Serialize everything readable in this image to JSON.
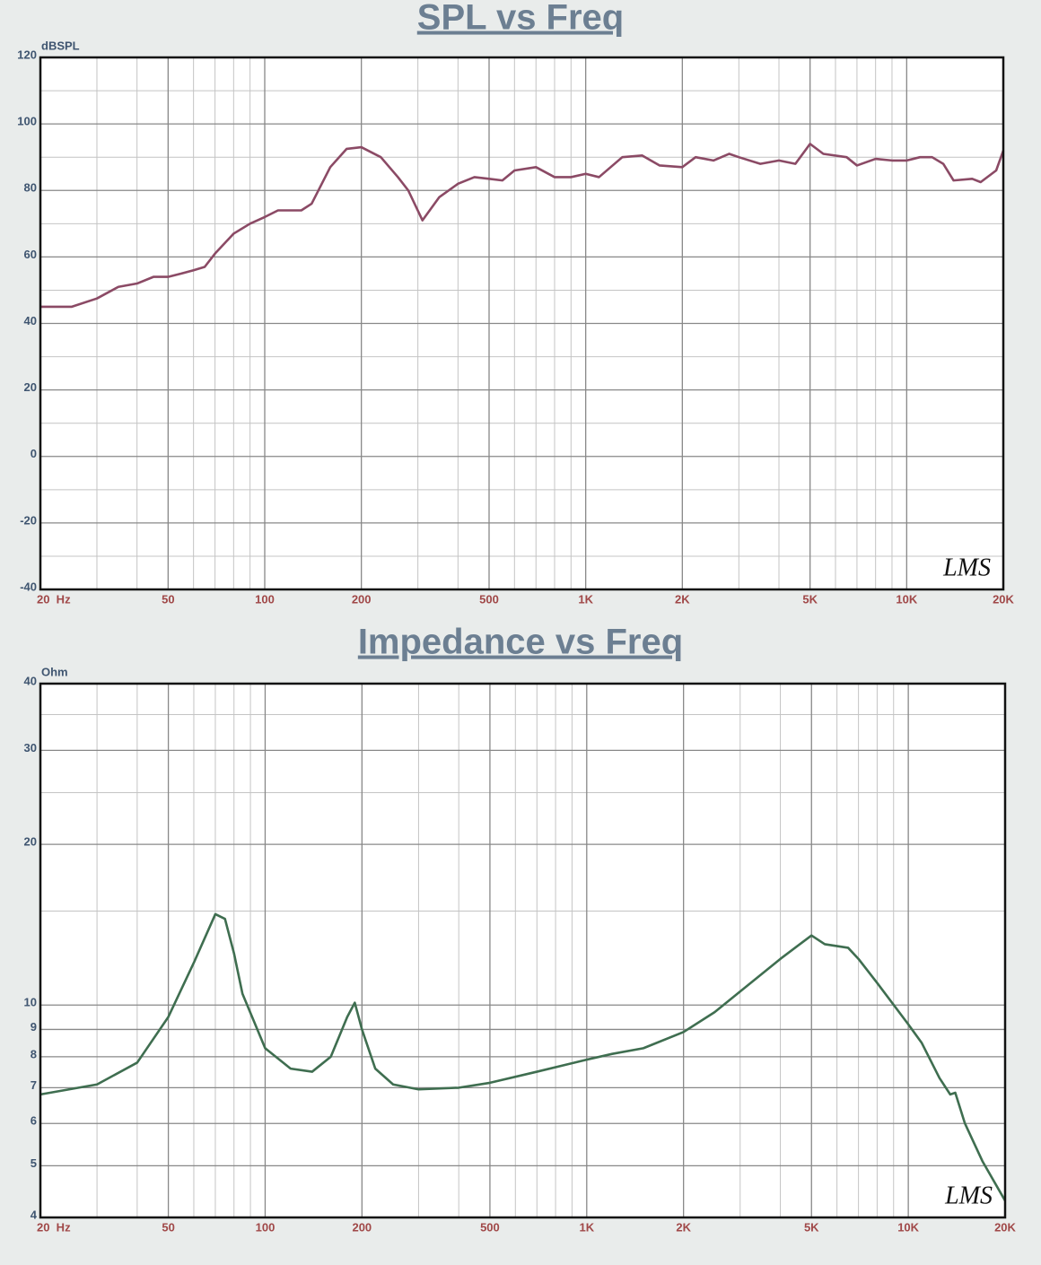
{
  "chart_data": [
    {
      "type": "line",
      "title": "SPL vs Freq",
      "y_label": "dBSPL",
      "watermark": "LMS",
      "xscale": "log",
      "yscale": "linear",
      "grid": true,
      "color": "#8b4a65",
      "xlim": [
        20,
        20000
      ],
      "ylim": [
        -40,
        120
      ],
      "xticks": [
        {
          "value": 20,
          "label": "20  Hz"
        },
        50,
        100,
        200,
        500,
        {
          "value": 1000,
          "label": "1K"
        },
        {
          "value": 2000,
          "label": "2K"
        },
        {
          "value": 5000,
          "label": "5K"
        },
        {
          "value": 10000,
          "label": "10K"
        },
        {
          "value": 20000,
          "label": "20K"
        }
      ],
      "x_minor_ticks": [
        30,
        40,
        60,
        70,
        80,
        90,
        300,
        400,
        600,
        700,
        800,
        900,
        3000,
        4000,
        6000,
        7000,
        8000,
        9000
      ],
      "yticks": [
        -40,
        -20,
        0,
        20,
        40,
        60,
        80,
        100,
        120
      ],
      "y_minor_ticks": [
        -30,
        -10,
        10,
        30,
        50,
        70,
        90,
        110
      ],
      "x": [
        20,
        25,
        30,
        35,
        40,
        45,
        50,
        55,
        60,
        65,
        70,
        80,
        90,
        100,
        110,
        130,
        140,
        160,
        180,
        200,
        230,
        260,
        280,
        310,
        350,
        400,
        450,
        500,
        550,
        600,
        700,
        800,
        900,
        1000,
        1100,
        1300,
        1500,
        1700,
        2000,
        2200,
        2500,
        2800,
        3000,
        3500,
        4000,
        4500,
        5000,
        5500,
        6500,
        7000,
        8000,
        9000,
        10000,
        11000,
        12000,
        13000,
        14000,
        16000,
        17000,
        19000,
        20000
      ],
      "values": [
        45,
        45,
        47.5,
        51,
        52,
        54,
        54,
        55,
        56,
        57,
        61,
        67,
        70,
        72,
        74,
        74,
        76,
        87,
        92.5,
        93,
        90,
        84,
        80,
        71,
        78,
        82,
        84,
        83.5,
        83,
        86,
        87,
        84,
        84,
        85,
        84,
        90,
        90.5,
        87.5,
        87,
        90,
        89,
        91,
        90,
        88,
        89,
        88,
        94,
        91,
        90,
        87.5,
        89.5,
        89,
        89,
        90,
        90,
        88,
        83,
        83.5,
        82.5,
        86,
        92
      ]
    },
    {
      "type": "line",
      "title": "Impedance vs Freq",
      "y_label": "Ohm",
      "watermark": "LMS",
      "xscale": "log",
      "yscale": "log",
      "grid": true,
      "color": "#3f6e50",
      "xlim": [
        20,
        20000
      ],
      "ylim": [
        4,
        40
      ],
      "xticks": [
        {
          "value": 20,
          "label": "20  Hz"
        },
        50,
        100,
        200,
        500,
        {
          "value": 1000,
          "label": "1K"
        },
        {
          "value": 2000,
          "label": "2K"
        },
        {
          "value": 5000,
          "label": "5K"
        },
        {
          "value": 10000,
          "label": "10K"
        },
        {
          "value": 20000,
          "label": "20K"
        }
      ],
      "x_minor_ticks": [
        30,
        40,
        60,
        70,
        80,
        90,
        300,
        400,
        600,
        700,
        800,
        900,
        3000,
        4000,
        6000,
        7000,
        8000,
        9000
      ],
      "yticks": [
        4,
        5,
        6,
        7,
        8,
        9,
        10,
        20,
        30,
        40
      ],
      "y_minor_ticks": [
        15,
        25,
        35
      ],
      "x": [
        20,
        30,
        40,
        50,
        60,
        70,
        75,
        80,
        85,
        100,
        120,
        140,
        160,
        180,
        190,
        200,
        220,
        250,
        300,
        400,
        500,
        700,
        1000,
        1200,
        1500,
        2000,
        2500,
        3000,
        4000,
        5000,
        5500,
        6500,
        7000,
        8000,
        10000,
        11000,
        12500,
        13500,
        14000,
        15000,
        17000,
        20000
      ],
      "values": [
        6.8,
        7.1,
        7.8,
        9.5,
        12,
        14.8,
        14.5,
        12.5,
        10.5,
        8.3,
        7.6,
        7.5,
        8,
        9.5,
        10.1,
        9,
        7.6,
        7.1,
        6.95,
        7,
        7.15,
        7.5,
        7.9,
        8.1,
        8.3,
        8.9,
        9.7,
        10.6,
        12.2,
        13.5,
        13,
        12.8,
        12.2,
        11,
        9.2,
        8.5,
        7.3,
        6.8,
        6.85,
        6,
        5.1,
        4.3
      ]
    }
  ]
}
